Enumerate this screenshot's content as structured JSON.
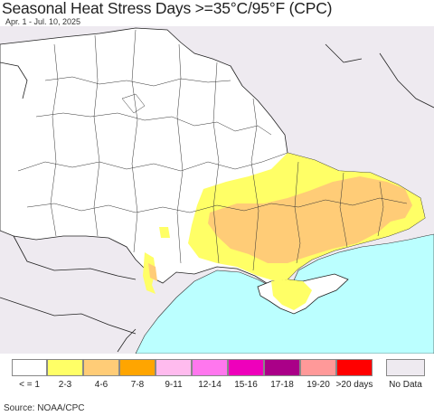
{
  "title": "Seasonal Heat Stress Days >=35°C/95°F (CPC)",
  "subtitle": "Apr. 1 - Jul. 10, 2025",
  "source": "Source: NOAA/CPC",
  "legend": {
    "items": [
      {
        "label": "< = 1",
        "color": "#ffffff"
      },
      {
        "label": "2-3",
        "color": "#ffff66"
      },
      {
        "label": "4-6",
        "color": "#ffcc77"
      },
      {
        "label": "7-8",
        "color": "#ffa500"
      },
      {
        "label": "9-11",
        "color": "#ffbbee"
      },
      {
        "label": "12-14",
        "color": "#ff77ee"
      },
      {
        "label": "15-16",
        "color": "#ee00bb"
      },
      {
        "label": "17-18",
        "color": "#aa0088"
      },
      {
        "label": "19-20",
        "color": "#ff9999"
      },
      {
        "label": ">20 days",
        "color": "#ff0000"
      }
    ],
    "no_data": {
      "label": "No Data",
      "color": "#eeeaf0"
    }
  },
  "colors": {
    "sea": "#bbffff",
    "outside_region": "#eeeaf0",
    "borders": "#222222"
  }
}
